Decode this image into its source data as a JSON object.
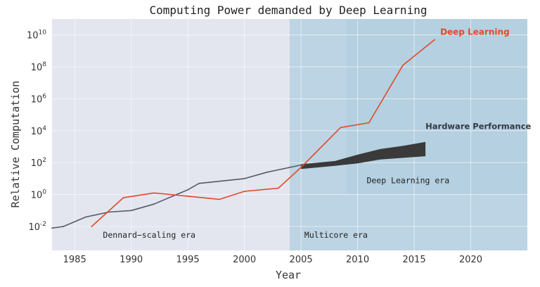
{
  "chart_data": {
    "type": "line",
    "title": "Computing Power demanded by Deep Learning",
    "xlabel": "Year",
    "ylabel": "Relative Computation",
    "xlim": [
      1983,
      2025
    ],
    "ylim_log10": [
      -3.5,
      11
    ],
    "y_scale": "log",
    "xticks": [
      1985,
      1990,
      1995,
      2000,
      2005,
      2010,
      2015,
      2020
    ],
    "yticks_exponent": [
      -2,
      0,
      2,
      4,
      6,
      8,
      10
    ],
    "ytick_base": "10",
    "grid": true,
    "regions": [
      {
        "name": "Dennard-scaling era",
        "label": "Dennard−scaling era",
        "x_from": 1983,
        "x_to": 2004,
        "y_from_log10": -3.5,
        "y_to_log10": 11
      },
      {
        "name": "Multicore era",
        "label": "Multicore era",
        "x_from": 2004,
        "x_to": 2025,
        "y_from_log10": -3.5,
        "y_to_log10": 11
      },
      {
        "name": "Deep Learning era",
        "label": "Deep Learning era",
        "x_from": 2009,
        "x_to": 2025,
        "y_from_log10": 0,
        "y_to_log10": 11
      }
    ],
    "series": [
      {
        "name": "Hardware Performance",
        "label": "Hardware Performance",
        "color": "#555a66",
        "x": [
          1983,
          1984,
          1986,
          1988,
          1990,
          1992,
          1995,
          1996,
          1998,
          2000,
          2002,
          2004,
          2005
        ],
        "log10y": [
          -2.1,
          -2.0,
          -1.4,
          -1.1,
          -1.0,
          -0.6,
          0.3,
          0.7,
          0.85,
          1.0,
          1.4,
          1.7,
          1.85
        ]
      },
      {
        "name": "Hardware Performance range",
        "type": "band",
        "color": "#3a3a3a",
        "x": [
          2005,
          2008,
          2010,
          2012,
          2014,
          2016
        ],
        "log10y_lower": [
          1.6,
          1.8,
          1.95,
          2.2,
          2.3,
          2.4
        ],
        "log10y_upper": [
          1.9,
          2.1,
          2.5,
          2.85,
          3.05,
          3.3
        ]
      },
      {
        "name": "Deep Learning",
        "label": "Deep Learning",
        "color": "#e04a2a",
        "x": [
          1986.5,
          1989.3,
          1992,
          1995,
          1997.8,
          2000,
          2003,
          2005,
          2008.5,
          2011,
          2014,
          2016.8
        ],
        "log10y": [
          -2.0,
          -0.2,
          0.1,
          -0.1,
          -0.3,
          0.2,
          0.4,
          1.7,
          4.2,
          4.5,
          8.1,
          9.7
        ]
      }
    ],
    "labels": {
      "deep_learning": "Deep Learning",
      "hardware_performance": "Hardware Performance"
    }
  }
}
